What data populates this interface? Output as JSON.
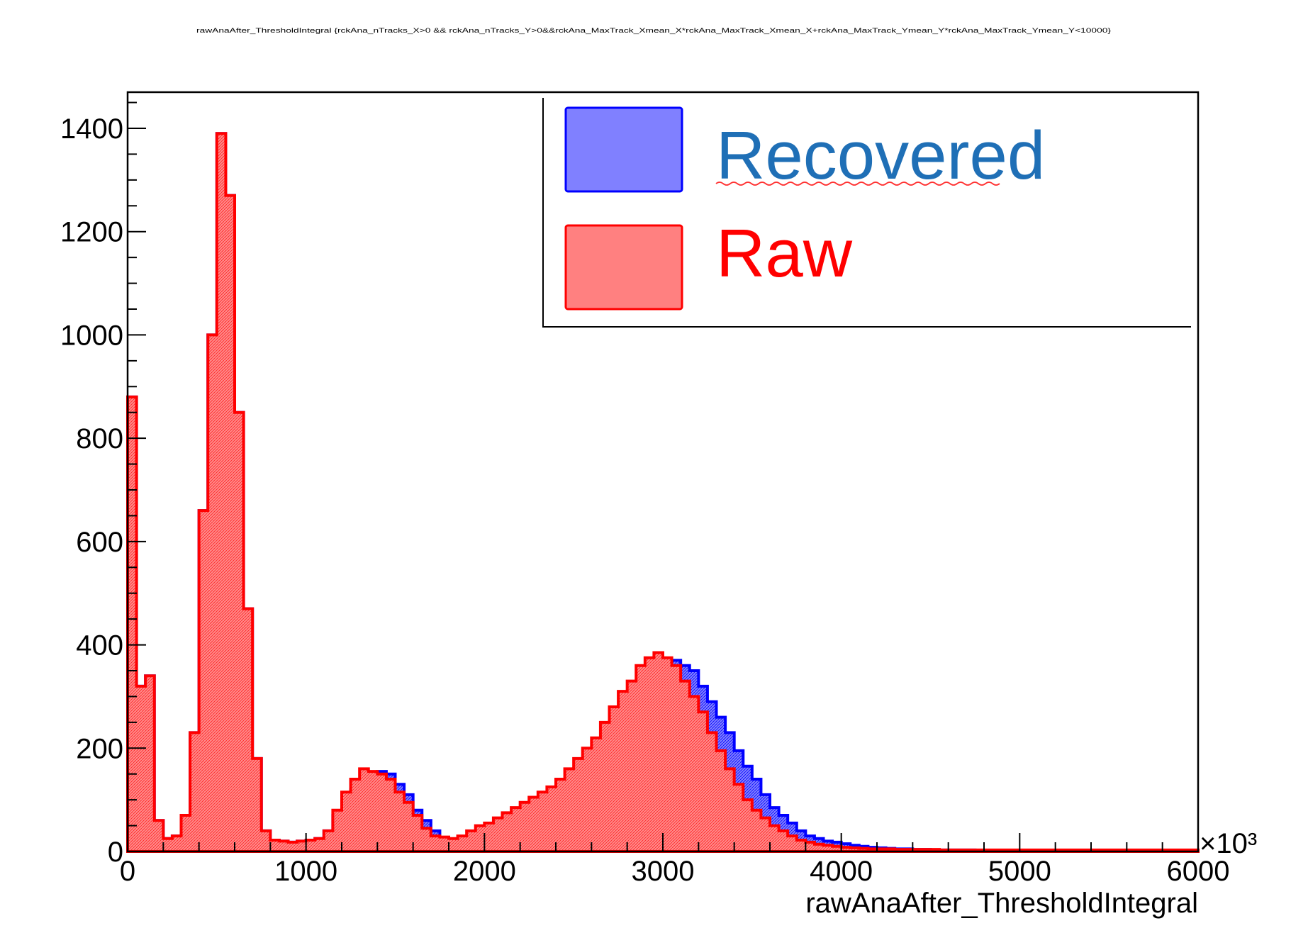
{
  "chart_data": {
    "type": "area",
    "title": "rawAnaAfter_ThresholdIntegral {rckAna_nTracks_X>0 && rckAna_nTracks_Y>0&&rckAna_MaxTrack_Xmean_X*rckAna_MaxTrack_Xmean_X+rckAna_MaxTrack_Ymean_Y*rckAna_MaxTrack_Ymean_Y<10000}",
    "xlabel": "rawAnaAfter_ThresholdIntegral",
    "ylabel": "",
    "x_multiplier": "×10³",
    "xlim": [
      0,
      6000
    ],
    "ylim": [
      0,
      1470
    ],
    "x_ticks": [
      "0",
      "1000",
      "2000",
      "3000",
      "4000",
      "5000",
      "6000"
    ],
    "y_ticks": [
      "0",
      "200",
      "400",
      "600",
      "800",
      "1000",
      "1200",
      "1400"
    ],
    "x": [
      25,
      75,
      125,
      175,
      225,
      275,
      325,
      375,
      425,
      475,
      525,
      575,
      625,
      675,
      725,
      775,
      825,
      875,
      925,
      975,
      1025,
      1075,
      1125,
      1175,
      1225,
      1275,
      1325,
      1375,
      1425,
      1475,
      1525,
      1575,
      1625,
      1675,
      1725,
      1775,
      1825,
      1875,
      1925,
      1975,
      2025,
      2075,
      2125,
      2175,
      2225,
      2275,
      2325,
      2375,
      2425,
      2475,
      2525,
      2575,
      2625,
      2675,
      2725,
      2775,
      2825,
      2875,
      2925,
      2975,
      3025,
      3075,
      3125,
      3175,
      3225,
      3275,
      3325,
      3375,
      3425,
      3475,
      3525,
      3575,
      3625,
      3675,
      3725,
      3775,
      3825,
      3875,
      3925,
      3975,
      4025,
      4075,
      4125,
      4175,
      4225,
      4275,
      4325,
      4375,
      4425,
      4475,
      4525,
      4575,
      4625,
      4675,
      4725,
      4775,
      4825,
      4875,
      4925,
      4975,
      5025,
      5075,
      5125,
      5175,
      5225,
      5275,
      5325,
      5375,
      5425,
      5475,
      5525,
      5575,
      5625,
      5675,
      5725,
      5775,
      5825,
      5875,
      5925,
      5975
    ],
    "series": [
      {
        "name": "Recovered",
        "color": "#0000ff",
        "fill": "#8080ff",
        "values": [
          880,
          320,
          340,
          60,
          25,
          30,
          70,
          230,
          660,
          1000,
          1390,
          1270,
          850,
          470,
          180,
          40,
          22,
          20,
          18,
          20,
          22,
          25,
          40,
          70,
          100,
          120,
          140,
          150,
          155,
          150,
          130,
          110,
          80,
          60,
          40,
          25,
          20,
          22,
          25,
          30,
          35,
          40,
          50,
          60,
          70,
          75,
          80,
          90,
          100,
          120,
          140,
          160,
          180,
          200,
          220,
          250,
          280,
          300,
          330,
          350,
          365,
          370,
          360,
          350,
          320,
          290,
          260,
          230,
          195,
          165,
          140,
          110,
          85,
          70,
          55,
          40,
          30,
          25,
          20,
          18,
          15,
          12,
          10,
          8,
          7,
          6,
          5,
          5,
          4,
          4,
          3,
          3,
          3,
          3,
          3,
          2,
          2,
          2,
          2,
          2,
          2,
          2,
          2,
          2,
          2,
          2,
          2,
          2,
          2,
          2,
          2,
          2,
          2,
          2,
          2,
          2,
          2,
          2,
          2,
          2
        ]
      },
      {
        "name": "Raw",
        "color": "#ff0000",
        "fill": "#ff8080",
        "values": [
          880,
          320,
          340,
          60,
          25,
          30,
          70,
          230,
          660,
          1000,
          1390,
          1270,
          850,
          470,
          180,
          40,
          22,
          20,
          18,
          20,
          22,
          25,
          40,
          80,
          115,
          140,
          160,
          155,
          150,
          140,
          115,
          95,
          70,
          45,
          30,
          28,
          25,
          30,
          40,
          50,
          55,
          65,
          75,
          85,
          95,
          105,
          115,
          125,
          140,
          160,
          180,
          200,
          220,
          250,
          280,
          310,
          330,
          360,
          375,
          385,
          375,
          360,
          330,
          300,
          270,
          230,
          195,
          160,
          130,
          100,
          80,
          65,
          50,
          40,
          30,
          22,
          18,
          14,
          12,
          10,
          8,
          7,
          6,
          5,
          5,
          5,
          4,
          4,
          4,
          4,
          4,
          3,
          3,
          3,
          3,
          3,
          3,
          3,
          3,
          3,
          3,
          3,
          3,
          3,
          3,
          3,
          3,
          3,
          3,
          3,
          3,
          3,
          3,
          3,
          3,
          3,
          3,
          3,
          3,
          3
        ]
      }
    ],
    "legend": {
      "placement": "top-right",
      "entries": [
        {
          "label": "Recovered",
          "text_color": "#1f6fb6",
          "fill": "#8080ff",
          "border": "#0000ff"
        },
        {
          "label": "Raw",
          "text_color": "#ff0000",
          "fill": "#ff8080",
          "border": "#ff0000"
        }
      ]
    },
    "grid": false
  }
}
